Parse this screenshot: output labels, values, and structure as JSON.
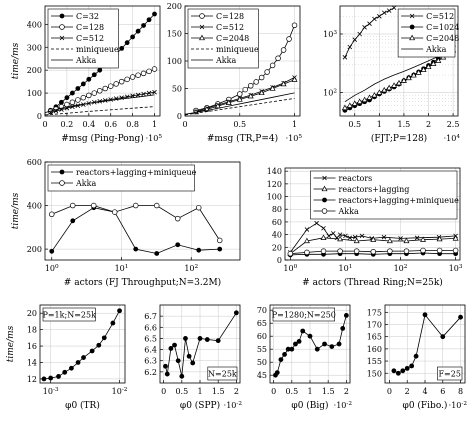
{
  "chart_data": [
    {
      "type": "line",
      "xlabel": "#msg (Ping-Pong)",
      "ylabel": "time/ms",
      "xscale": "linear",
      "yscale": "linear",
      "xlim": [
        0,
        1.05
      ],
      "ylim": [
        0,
        480
      ],
      "xticks": [
        0,
        0.2,
        0.4,
        0.6,
        0.8,
        1
      ],
      "yticks": [
        0,
        100,
        200,
        300,
        400
      ],
      "xexp": "·10^5",
      "legend": "top-left",
      "grid": true,
      "series": [
        {
          "name": "C=32",
          "style": "filled-circle",
          "x": [
            0.05,
            0.1,
            0.15,
            0.2,
            0.25,
            0.3,
            0.35,
            0.4,
            0.45,
            0.5,
            0.55,
            0.6,
            0.65,
            0.7,
            0.75,
            0.8,
            0.85,
            0.9,
            0.95,
            1.0
          ],
          "y": [
            25,
            40,
            60,
            80,
            100,
            120,
            140,
            160,
            180,
            200,
            225,
            250,
            270,
            295,
            320,
            345,
            370,
            395,
            420,
            445
          ]
        },
        {
          "name": "C=128",
          "style": "open-circle",
          "x": [
            0.05,
            0.1,
            0.15,
            0.2,
            0.25,
            0.3,
            0.35,
            0.4,
            0.45,
            0.5,
            0.55,
            0.6,
            0.65,
            0.7,
            0.75,
            0.8,
            0.85,
            0.9,
            0.95,
            1.0
          ],
          "y": [
            20,
            30,
            40,
            50,
            60,
            70,
            80,
            90,
            100,
            110,
            120,
            130,
            140,
            150,
            160,
            170,
            178,
            186,
            195,
            205
          ]
        },
        {
          "name": "C=512",
          "style": "x",
          "x": [
            0.05,
            0.1,
            0.15,
            0.2,
            0.25,
            0.3,
            0.35,
            0.4,
            0.45,
            0.5,
            0.55,
            0.6,
            0.65,
            0.7,
            0.75,
            0.8,
            0.85,
            0.9,
            0.95,
            1.0
          ],
          "y": [
            15,
            22,
            28,
            34,
            40,
            45,
            50,
            55,
            60,
            64,
            68,
            72,
            76,
            80,
            84,
            88,
            92,
            96,
            100,
            104
          ]
        },
        {
          "name": "miniqueue",
          "style": "dashed",
          "x": [
            0,
            0.2,
            0.4,
            0.6,
            0.8,
            1.0
          ],
          "y": [
            5,
            12,
            20,
            27,
            34,
            41
          ]
        },
        {
          "name": "Akka",
          "style": "solid",
          "x": [
            0,
            0.1,
            0.2,
            0.3,
            0.4,
            0.5,
            0.6,
            0.7,
            0.8,
            0.9,
            1.0
          ],
          "y": [
            15,
            28,
            40,
            48,
            55,
            62,
            68,
            75,
            80,
            86,
            92
          ]
        }
      ]
    },
    {
      "type": "line",
      "xlabel": "#msg (TR,P=4)",
      "ylabel": "",
      "xscale": "linear",
      "yscale": "linear",
      "xlim": [
        0,
        1.05
      ],
      "ylim": [
        0,
        200
      ],
      "xticks": [
        0,
        0.5,
        1
      ],
      "yticks": [
        0,
        50,
        100,
        150,
        200
      ],
      "xexp": "·10^5",
      "legend": "top-left",
      "grid": true,
      "series": [
        {
          "name": "C=128",
          "style": "open-circle",
          "x": [
            0.1,
            0.2,
            0.3,
            0.4,
            0.5,
            0.55,
            0.6,
            0.65,
            0.7,
            0.75,
            0.8,
            0.85,
            0.9,
            0.95,
            1.0
          ],
          "y": [
            10,
            15,
            22,
            30,
            40,
            48,
            55,
            62,
            70,
            80,
            92,
            105,
            120,
            140,
            165
          ]
        },
        {
          "name": "C=512",
          "style": "x",
          "x": [
            0.1,
            0.2,
            0.3,
            0.4,
            0.5,
            0.6,
            0.7,
            0.8,
            0.9,
            1.0
          ],
          "y": [
            8,
            14,
            20,
            26,
            32,
            38,
            45,
            52,
            60,
            70
          ]
        },
        {
          "name": "C=2048",
          "style": "open-triangle",
          "x": [
            0.1,
            0.2,
            0.3,
            0.4,
            0.5,
            0.6,
            0.7,
            0.8,
            0.9,
            1.0
          ],
          "y": [
            7,
            12,
            18,
            24,
            30,
            36,
            42,
            50,
            58,
            66
          ]
        },
        {
          "name": "miniqueue",
          "style": "dashed",
          "x": [
            0,
            0.2,
            0.4,
            0.6,
            0.8,
            1.0
          ],
          "y": [
            2,
            8,
            14,
            20,
            26,
            32
          ]
        },
        {
          "name": "Akka",
          "style": "solid",
          "x": [
            0,
            0.2,
            0.4,
            0.6,
            0.8,
            1.0
          ],
          "y": [
            3,
            10,
            18,
            26,
            34,
            42
          ]
        }
      ]
    },
    {
      "type": "line",
      "xlabel": "(FJT;P=128)",
      "ylabel": "",
      "xscale": "linear",
      "yscale": "log",
      "xlim": [
        0.2,
        2.6
      ],
      "ylim": [
        40,
        3000
      ],
      "xticks": [
        0.5,
        1,
        1.5,
        2,
        2.5
      ],
      "yticks": [
        100,
        1000
      ],
      "xexp": "·10^4",
      "legend": "top-right",
      "grid": true,
      "series": [
        {
          "name": "C=512",
          "style": "x",
          "x": [
            0.3,
            0.4,
            0.5,
            0.6,
            0.7,
            0.8,
            0.9,
            1.0,
            1.1,
            1.2,
            1.3
          ],
          "y": [
            400,
            600,
            800,
            1000,
            1300,
            1500,
            1800,
            2000,
            2300,
            2500,
            2800
          ]
        },
        {
          "name": "C=1024",
          "style": "filled-circle",
          "x": [
            0.3,
            0.4,
            0.5,
            0.6,
            0.7,
            0.8,
            0.9,
            1.0,
            1.1,
            1.2,
            1.3,
            1.4,
            1.5,
            1.6,
            1.7,
            1.8,
            1.9,
            2.0,
            2.1,
            2.2,
            2.3,
            2.4,
            2.5
          ],
          "y": [
            50,
            55,
            60,
            65,
            70,
            75,
            85,
            95,
            105,
            115,
            125,
            140,
            160,
            180,
            200,
            225,
            255,
            290,
            330,
            380,
            440,
            520,
            620
          ]
        },
        {
          "name": "C=2048",
          "style": "open-triangle",
          "x": [
            0.3,
            0.4,
            0.5,
            0.6,
            0.7,
            0.8,
            0.9,
            1.0,
            1.1,
            1.2,
            1.3,
            1.4,
            1.5,
            1.6,
            1.7,
            1.8,
            1.9,
            2.0,
            2.1,
            2.2,
            2.3,
            2.4,
            2.5
          ],
          "y": [
            55,
            60,
            65,
            70,
            75,
            82,
            90,
            100,
            110,
            120,
            132,
            145,
            160,
            178,
            198,
            220,
            245,
            275,
            310,
            350,
            400,
            460,
            530
          ]
        },
        {
          "name": "Akka",
          "style": "solid",
          "x": [
            0.3,
            0.5,
            0.7,
            0.9,
            1.1,
            1.3,
            1.5,
            1.7,
            1.9,
            2.1,
            2.3,
            2.5
          ],
          "y": [
            70,
            90,
            110,
            140,
            170,
            200,
            230,
            270,
            320,
            380,
            450,
            530
          ]
        }
      ]
    },
    {
      "type": "line",
      "xlabel": "# actors (FJ Throughput;N=3.2M)",
      "ylabel": "time/ms",
      "xscale": "log",
      "yscale": "linear",
      "xlim": [
        0.8,
        500
      ],
      "ylim": [
        150,
        600
      ],
      "xticks": [
        1,
        10,
        100
      ],
      "yticks": [
        200,
        400,
        600
      ],
      "legend": "top-left",
      "grid": true,
      "series": [
        {
          "name": "reactors+lagging+miniqueue",
          "style": "filled-circle",
          "x": [
            1,
            2,
            4,
            8,
            16,
            32,
            64,
            128,
            256
          ],
          "y": [
            190,
            330,
            390,
            370,
            200,
            180,
            220,
            195,
            200
          ]
        },
        {
          "name": "Akka",
          "style": "open-circle",
          "x": [
            1,
            2,
            4,
            8,
            16,
            32,
            64,
            128,
            256
          ],
          "y": [
            360,
            400,
            400,
            370,
            400,
            400,
            340,
            390,
            240
          ]
        }
      ]
    },
    {
      "type": "line",
      "xlabel": "# actors (Thread Ring;N=25k)",
      "ylabel": "",
      "xscale": "log",
      "yscale": "linear",
      "xlim": [
        0.8,
        1200
      ],
      "ylim": [
        0,
        145
      ],
      "xticks": [
        1,
        10,
        100,
        1000
      ],
      "yticks": [
        0,
        20,
        40,
        60,
        80,
        100,
        120,
        140
      ],
      "legend": "top-right",
      "grid": true,
      "series": [
        {
          "name": "reactors",
          "style": "x",
          "x": [
            1,
            2,
            3,
            4,
            5,
            6,
            7,
            8,
            10,
            12,
            15,
            20,
            30,
            50,
            100,
            200,
            500,
            1000
          ],
          "y": [
            12,
            48,
            58,
            50,
            38,
            42,
            35,
            40,
            38,
            35,
            36,
            38,
            34,
            36,
            34,
            35,
            36,
            38
          ]
        },
        {
          "name": "reactors+lagging",
          "style": "open-triangle",
          "x": [
            1,
            2,
            4,
            8,
            16,
            32,
            64,
            128,
            256,
            512,
            1000
          ],
          "y": [
            10,
            30,
            35,
            33,
            30,
            32,
            30,
            30,
            32,
            33,
            34
          ]
        },
        {
          "name": "reactors+lagging+miniqueue",
          "style": "filled-circle",
          "x": [
            1,
            2,
            4,
            8,
            16,
            32,
            64,
            128,
            256,
            512,
            1000
          ],
          "y": [
            8,
            9,
            9,
            10,
            10,
            9,
            10,
            10,
            11,
            10,
            10
          ]
        },
        {
          "name": "Akka",
          "style": "open-circle",
          "x": [
            1,
            2,
            4,
            8,
            16,
            32,
            64,
            128,
            256,
            512,
            1000
          ],
          "y": [
            10,
            12,
            14,
            14,
            14,
            13,
            14,
            14,
            15,
            15,
            15
          ]
        }
      ]
    },
    {
      "type": "line",
      "xlabel": "φ0 (TR)",
      "ylabel": "time/ms",
      "xscale": "log",
      "yscale": "linear",
      "xlim": [
        0.0007,
        0.012
      ],
      "ylim": [
        11.5,
        21
      ],
      "xticks": [
        0.001,
        0.01
      ],
      "xticklabels": [
        "10^-3",
        "10^-2"
      ],
      "yticks": [
        12,
        14,
        16,
        18,
        20
      ],
      "annotation": "P=1k;N=25k",
      "grid": true,
      "series": [
        {
          "style": "filled-circle",
          "x": [
            0.0008,
            0.001,
            0.0013,
            0.0016,
            0.002,
            0.0025,
            0.003,
            0.004,
            0.005,
            0.006,
            0.008,
            0.01
          ],
          "y": [
            12,
            12.1,
            12.3,
            12.8,
            13.3,
            14,
            14.6,
            15.4,
            16.1,
            17,
            18.8,
            20.3
          ]
        }
      ]
    },
    {
      "type": "line",
      "xlabel": "φ0 (SPP)",
      "ylabel": "",
      "xscale": "linear",
      "yscale": "linear",
      "xlim": [
        -0.1,
        2.1
      ],
      "ylim": [
        6.1,
        6.8
      ],
      "xticks": [
        0,
        0.5,
        1,
        1.5,
        2
      ],
      "yticks": [
        6.2,
        6.3,
        6.4,
        6.5,
        6.6,
        6.7
      ],
      "xexp": "·10^-2",
      "annotation": "N=25k",
      "grid": true,
      "series": [
        {
          "style": "filled-circle",
          "x": [
            0.05,
            0.1,
            0.2,
            0.3,
            0.4,
            0.5,
            0.6,
            0.7,
            0.8,
            1.0,
            1.2,
            1.5,
            2.0
          ],
          "y": [
            6.25,
            6.18,
            6.41,
            6.44,
            6.3,
            6.16,
            6.5,
            6.34,
            6.28,
            6.5,
            6.49,
            6.48,
            6.73
          ]
        }
      ]
    },
    {
      "type": "line",
      "xlabel": "φ0 (Big)",
      "ylabel": "",
      "xscale": "linear",
      "yscale": "linear",
      "xlim": [
        -0.1,
        2.1
      ],
      "ylim": [
        42,
        72
      ],
      "xticks": [
        0,
        0.5,
        1,
        1.5,
        2
      ],
      "yticks": [
        45,
        50,
        55,
        60,
        65,
        70
      ],
      "xexp": "·10^-2",
      "annotation": "P=1280;N=250",
      "grid": true,
      "series": [
        {
          "style": "filled-circle",
          "x": [
            0.05,
            0.1,
            0.2,
            0.3,
            0.4,
            0.5,
            0.6,
            0.7,
            0.8,
            1.0,
            1.2,
            1.4,
            1.6,
            1.8,
            1.9,
            2.0
          ],
          "y": [
            45,
            46,
            51,
            53,
            55,
            55,
            57,
            58,
            62,
            60,
            55,
            57,
            56,
            57,
            63,
            68
          ]
        }
      ]
    },
    {
      "type": "line",
      "xlabel": "φ0 (Fibo.)",
      "ylabel": "",
      "xscale": "linear",
      "yscale": "linear",
      "xlim": [
        -0.5,
        8.5
      ],
      "ylim": [
        146,
        178
      ],
      "xticks": [
        0,
        2,
        4,
        6,
        8
      ],
      "yticks": [
        150,
        155,
        160,
        165,
        170,
        175
      ],
      "xexp": "·10^-2",
      "annotation": "F=25",
      "grid": true,
      "series": [
        {
          "style": "filled-circle",
          "x": [
            0.5,
            1,
            1.5,
            2,
            2.5,
            3,
            4,
            6,
            8
          ],
          "y": [
            151,
            150,
            151,
            152,
            153,
            157,
            174,
            165,
            173
          ]
        }
      ]
    }
  ]
}
